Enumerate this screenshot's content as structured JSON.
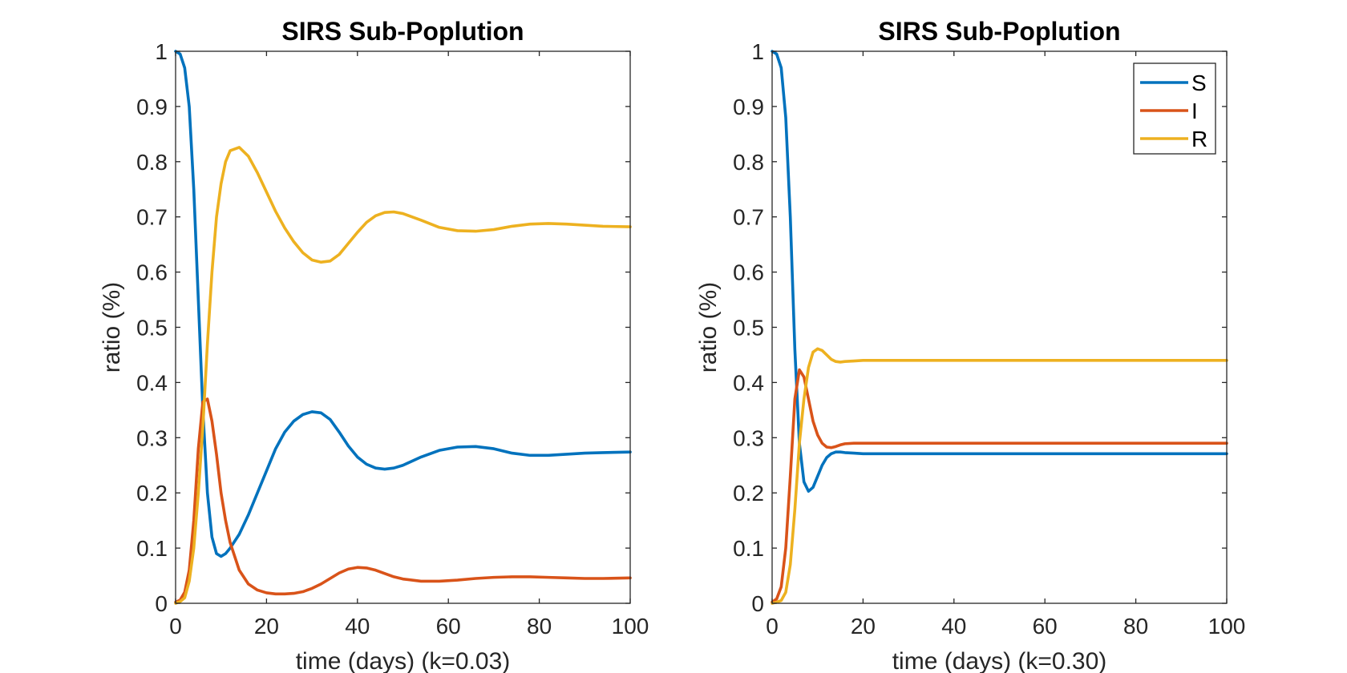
{
  "chart_data": [
    {
      "type": "line",
      "title": "SIRS Sub-Poplution",
      "xlabel": "time (days) (k=0.03)",
      "ylabel": "ratio (%)",
      "xlim": [
        0,
        100
      ],
      "ylim": [
        0,
        1
      ],
      "xticks": [
        0,
        20,
        40,
        60,
        80,
        100
      ],
      "yticks": [
        0,
        0.1,
        0.2,
        0.3,
        0.4,
        0.5,
        0.6,
        0.7,
        0.8,
        0.9,
        1
      ],
      "legend": null,
      "series": [
        {
          "name": "S",
          "color": "#0072BD",
          "x": [
            0,
            1,
            2,
            3,
            4,
            5,
            6,
            7,
            8,
            9,
            10,
            11,
            12,
            14,
            16,
            18,
            20,
            22,
            24,
            26,
            28,
            30,
            32,
            34,
            36,
            38,
            40,
            42,
            44,
            46,
            48,
            50,
            54,
            58,
            62,
            66,
            70,
            74,
            78,
            82,
            86,
            90,
            94,
            100
          ],
          "y": [
            1.0,
            0.995,
            0.97,
            0.9,
            0.75,
            0.55,
            0.35,
            0.2,
            0.12,
            0.09,
            0.085,
            0.09,
            0.1,
            0.125,
            0.16,
            0.2,
            0.24,
            0.28,
            0.31,
            0.33,
            0.342,
            0.347,
            0.345,
            0.333,
            0.31,
            0.285,
            0.265,
            0.252,
            0.245,
            0.243,
            0.245,
            0.25,
            0.265,
            0.277,
            0.283,
            0.284,
            0.28,
            0.272,
            0.268,
            0.268,
            0.27,
            0.272,
            0.273,
            0.274
          ]
        },
        {
          "name": "I",
          "color": "#D95319",
          "x": [
            0,
            1,
            2,
            3,
            4,
            5,
            6,
            7,
            8,
            9,
            10,
            11,
            12,
            14,
            16,
            18,
            20,
            22,
            24,
            26,
            28,
            30,
            32,
            34,
            36,
            38,
            40,
            42,
            44,
            46,
            48,
            50,
            54,
            58,
            62,
            66,
            70,
            74,
            78,
            82,
            86,
            90,
            94,
            100
          ],
          "y": [
            0.002,
            0.006,
            0.02,
            0.06,
            0.15,
            0.28,
            0.365,
            0.37,
            0.33,
            0.27,
            0.2,
            0.15,
            0.11,
            0.06,
            0.035,
            0.024,
            0.019,
            0.017,
            0.017,
            0.018,
            0.021,
            0.027,
            0.035,
            0.045,
            0.055,
            0.062,
            0.065,
            0.064,
            0.06,
            0.054,
            0.048,
            0.044,
            0.04,
            0.04,
            0.042,
            0.045,
            0.047,
            0.048,
            0.048,
            0.047,
            0.046,
            0.045,
            0.045,
            0.046
          ]
        },
        {
          "name": "R",
          "color": "#EDB120",
          "x": [
            0,
            1,
            2,
            3,
            4,
            5,
            6,
            7,
            8,
            9,
            10,
            11,
            12,
            14,
            16,
            18,
            20,
            22,
            24,
            26,
            28,
            30,
            32,
            34,
            36,
            38,
            40,
            42,
            44,
            46,
            48,
            50,
            54,
            58,
            62,
            66,
            70,
            74,
            78,
            82,
            86,
            90,
            94,
            100
          ],
          "y": [
            0.0,
            0.003,
            0.01,
            0.04,
            0.1,
            0.2,
            0.32,
            0.47,
            0.6,
            0.7,
            0.76,
            0.8,
            0.82,
            0.826,
            0.81,
            0.78,
            0.745,
            0.71,
            0.68,
            0.655,
            0.635,
            0.622,
            0.618,
            0.62,
            0.632,
            0.652,
            0.672,
            0.69,
            0.702,
            0.708,
            0.709,
            0.706,
            0.694,
            0.681,
            0.675,
            0.674,
            0.677,
            0.683,
            0.687,
            0.688,
            0.687,
            0.685,
            0.683,
            0.682
          ]
        }
      ]
    },
    {
      "type": "line",
      "title": "SIRS Sub-Poplution",
      "xlabel": "time (days) (k=0.30)",
      "ylabel": "ratio (%)",
      "xlim": [
        0,
        100
      ],
      "ylim": [
        0,
        1
      ],
      "xticks": [
        0,
        20,
        40,
        60,
        80,
        100
      ],
      "yticks": [
        0,
        0.1,
        0.2,
        0.3,
        0.4,
        0.5,
        0.6,
        0.7,
        0.8,
        0.9,
        1
      ],
      "legend": "top-right",
      "series": [
        {
          "name": "S",
          "color": "#0072BD",
          "x": [
            0,
            1,
            2,
            3,
            4,
            5,
            6,
            7,
            8,
            9,
            10,
            11,
            12,
            13,
            14,
            15,
            16,
            18,
            20,
            24,
            30,
            40,
            60,
            80,
            100
          ],
          "y": [
            1.0,
            0.995,
            0.97,
            0.88,
            0.7,
            0.46,
            0.29,
            0.22,
            0.203,
            0.21,
            0.23,
            0.25,
            0.264,
            0.271,
            0.274,
            0.274,
            0.273,
            0.272,
            0.271,
            0.271,
            0.271,
            0.271,
            0.271,
            0.271,
            0.271
          ]
        },
        {
          "name": "I",
          "color": "#D95319",
          "x": [
            0,
            1,
            2,
            3,
            4,
            5,
            6,
            7,
            8,
            9,
            10,
            11,
            12,
            13,
            14,
            15,
            16,
            18,
            20,
            24,
            30,
            40,
            60,
            80,
            100
          ],
          "y": [
            0.002,
            0.008,
            0.03,
            0.1,
            0.23,
            0.37,
            0.423,
            0.41,
            0.37,
            0.33,
            0.305,
            0.29,
            0.283,
            0.282,
            0.284,
            0.287,
            0.289,
            0.29,
            0.29,
            0.29,
            0.29,
            0.29,
            0.29,
            0.29,
            0.29
          ]
        },
        {
          "name": "R",
          "color": "#EDB120",
          "x": [
            0,
            1,
            2,
            3,
            4,
            5,
            6,
            7,
            8,
            9,
            10,
            11,
            12,
            13,
            14,
            15,
            16,
            18,
            20,
            24,
            30,
            40,
            60,
            80,
            100
          ],
          "y": [
            0.0,
            0.002,
            0.005,
            0.02,
            0.07,
            0.17,
            0.29,
            0.37,
            0.427,
            0.455,
            0.461,
            0.458,
            0.45,
            0.442,
            0.438,
            0.437,
            0.438,
            0.439,
            0.44,
            0.44,
            0.44,
            0.44,
            0.44,
            0.44,
            0.44
          ]
        }
      ]
    }
  ]
}
